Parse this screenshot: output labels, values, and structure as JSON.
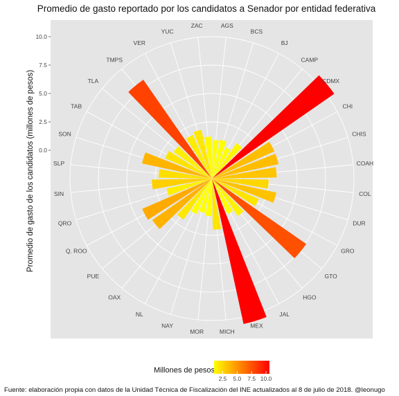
{
  "chart_data": {
    "type": "bar",
    "coordinate_system": "polar",
    "title": "Promedio de gasto reportado por los candidatos a Senador por entidad federativa",
    "ylabel": "Promedio de gasto de los candidatos (millones de pesos)",
    "yticks": [
      "10.0",
      "7.5",
      "5.0",
      "2.5",
      "0.0"
    ],
    "ylim": [
      -2.5,
      10
    ],
    "categories": [
      "AGS",
      "BCS",
      "BJ",
      "CAMP",
      "CDMX",
      "CHI",
      "CHIS",
      "COAH",
      "COL",
      "DUR",
      "GRO",
      "GTO",
      "HGO",
      "JAL",
      "MEX",
      "MICH",
      "MOR",
      "NAY",
      "NL",
      "OAX",
      "PUE",
      "Q. ROO",
      "QRO",
      "SIN",
      "SLP",
      "SON",
      "TAB",
      "TLA",
      "TMPS",
      "VER",
      "YUC",
      "ZAC"
    ],
    "values": [
      0.9,
      1.0,
      0.5,
      1.3,
      10.6,
      3.5,
      3.5,
      3.2,
      2.5,
      3.3,
      2.0,
      7.6,
      1.5,
      0.9,
      10.6,
      2.0,
      0.8,
      0.6,
      0.9,
      1.9,
      3.9,
      4.2,
      1.6,
      2.8,
      2.2,
      3.8,
      2.0,
      1.6,
      8.1,
      1.7,
      1.9,
      1.2
    ],
    "color_scale": {
      "title": "Millones de pesos",
      "low": "#ffff00",
      "high": "#ff0000",
      "range": [
        1,
        10.6
      ],
      "ticks": [
        "2.5",
        "5.0",
        "7.5",
        "10.0"
      ],
      "tick_values": [
        2.5,
        5.0,
        7.5,
        10.0
      ]
    },
    "legend_position": "bottom",
    "grid": true,
    "panel_background": "#e5e5e5",
    "grid_color": "#ffffff"
  },
  "caption": "Fuente: elaboración propia con datos de la Unidad Técnica de Fiscalización del INE actualizados al 8 de julio de 2018. @leonugo"
}
